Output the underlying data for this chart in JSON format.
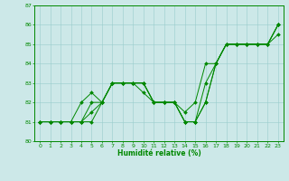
{
  "title": "",
  "xlabel": "Humidité relative (%)",
  "ylabel": "",
  "bg_color": "#cce8e8",
  "grid_color": "#99cccc",
  "line_color": "#008800",
  "xlim": [
    -0.5,
    23.5
  ],
  "ylim": [
    80,
    87
  ],
  "xticks": [
    0,
    1,
    2,
    3,
    4,
    5,
    6,
    7,
    8,
    9,
    10,
    11,
    12,
    13,
    14,
    15,
    16,
    17,
    18,
    19,
    20,
    21,
    22,
    23
  ],
  "yticks": [
    80,
    81,
    82,
    83,
    84,
    85,
    86,
    87
  ],
  "series": [
    [
      81,
      81,
      81,
      81,
      82,
      82.5,
      82,
      83,
      83,
      83,
      83,
      82,
      82,
      82,
      81.5,
      82,
      84,
      84,
      85,
      85,
      85,
      85,
      85,
      86
    ],
    [
      81,
      81,
      81,
      81,
      81,
      82,
      82,
      83,
      83,
      83,
      83,
      82,
      82,
      82,
      81,
      81,
      83,
      84,
      85,
      85,
      85,
      85,
      85,
      86
    ],
    [
      81,
      81,
      81,
      81,
      81,
      81.5,
      82,
      83,
      83,
      83,
      83,
      82,
      82,
      82,
      81,
      81,
      82,
      84,
      85,
      85,
      85,
      85,
      85,
      86
    ],
    [
      81,
      81,
      81,
      81,
      81,
      81,
      82,
      83,
      83,
      83,
      82.5,
      82,
      82,
      82,
      81,
      81,
      82,
      84,
      85,
      85,
      85,
      85,
      85,
      85.5
    ]
  ]
}
